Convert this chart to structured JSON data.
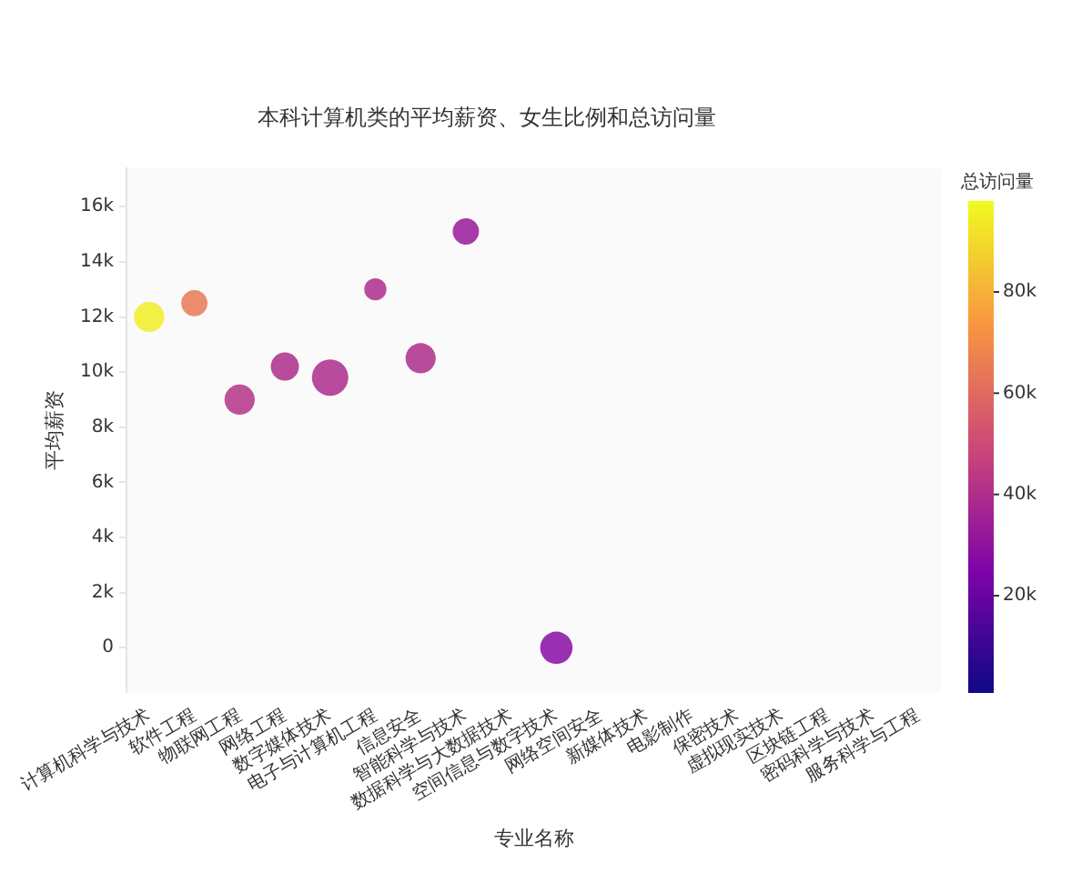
{
  "chart_data": {
    "type": "bubble",
    "title": "本科计算机类的平均薪资、女生比例和总访问量",
    "xlabel": "专业名称",
    "ylabel": "平均薪资",
    "clabel": "总访问量",
    "categories": [
      "计算机科学与技术",
      "软件工程",
      "物联网工程",
      "网络工程",
      "数字媒体技术",
      "电子与计算机工程",
      "信息安全",
      "智能科学与技术",
      "数据科学与大数据技术",
      "空间信息与数字技术",
      "网络空间安全",
      "新媒体技术",
      "电影制作",
      "保密技术",
      "虚拟现实技术",
      "区块链工程",
      "密码科学与技术",
      "服务科学与工程"
    ],
    "values": [
      12000,
      12500,
      9000,
      10200,
      9800,
      13000,
      10500,
      15100,
      null,
      0,
      null,
      null,
      null,
      null,
      null,
      null,
      null,
      null
    ],
    "sizes": [
      0.69,
      0.52,
      0.69,
      0.6,
      1,
      0.37,
      0.69,
      0.52,
      null,
      0.79,
      null,
      null,
      null,
      null,
      null,
      null,
      null,
      null
    ],
    "cvalues": [
      95000,
      65000,
      42000,
      40000,
      40000,
      40000,
      40000,
      33000,
      null,
      28000,
      null,
      null,
      null,
      null,
      null,
      null,
      null,
      null
    ],
    "ylim": [
      -1600,
      17400
    ],
    "yticks": [
      {
        "value": 0,
        "label": "0"
      },
      {
        "value": 2000,
        "label": "2k"
      },
      {
        "value": 4000,
        "label": "4k"
      },
      {
        "value": 6000,
        "label": "6k"
      },
      {
        "value": 8000,
        "label": "8k"
      },
      {
        "value": 10000,
        "label": "10k"
      },
      {
        "value": 12000,
        "label": "12k"
      },
      {
        "value": 14000,
        "label": "14k"
      },
      {
        "value": 16000,
        "label": "16k"
      }
    ],
    "clim": [
      1000,
      98000
    ],
    "cticks": [
      {
        "value": 20000,
        "label": "20k"
      },
      {
        "value": 40000,
        "label": "40k"
      },
      {
        "value": 60000,
        "label": "60k"
      },
      {
        "value": 80000,
        "label": "80k"
      }
    ],
    "grid": false,
    "legend": false
  }
}
